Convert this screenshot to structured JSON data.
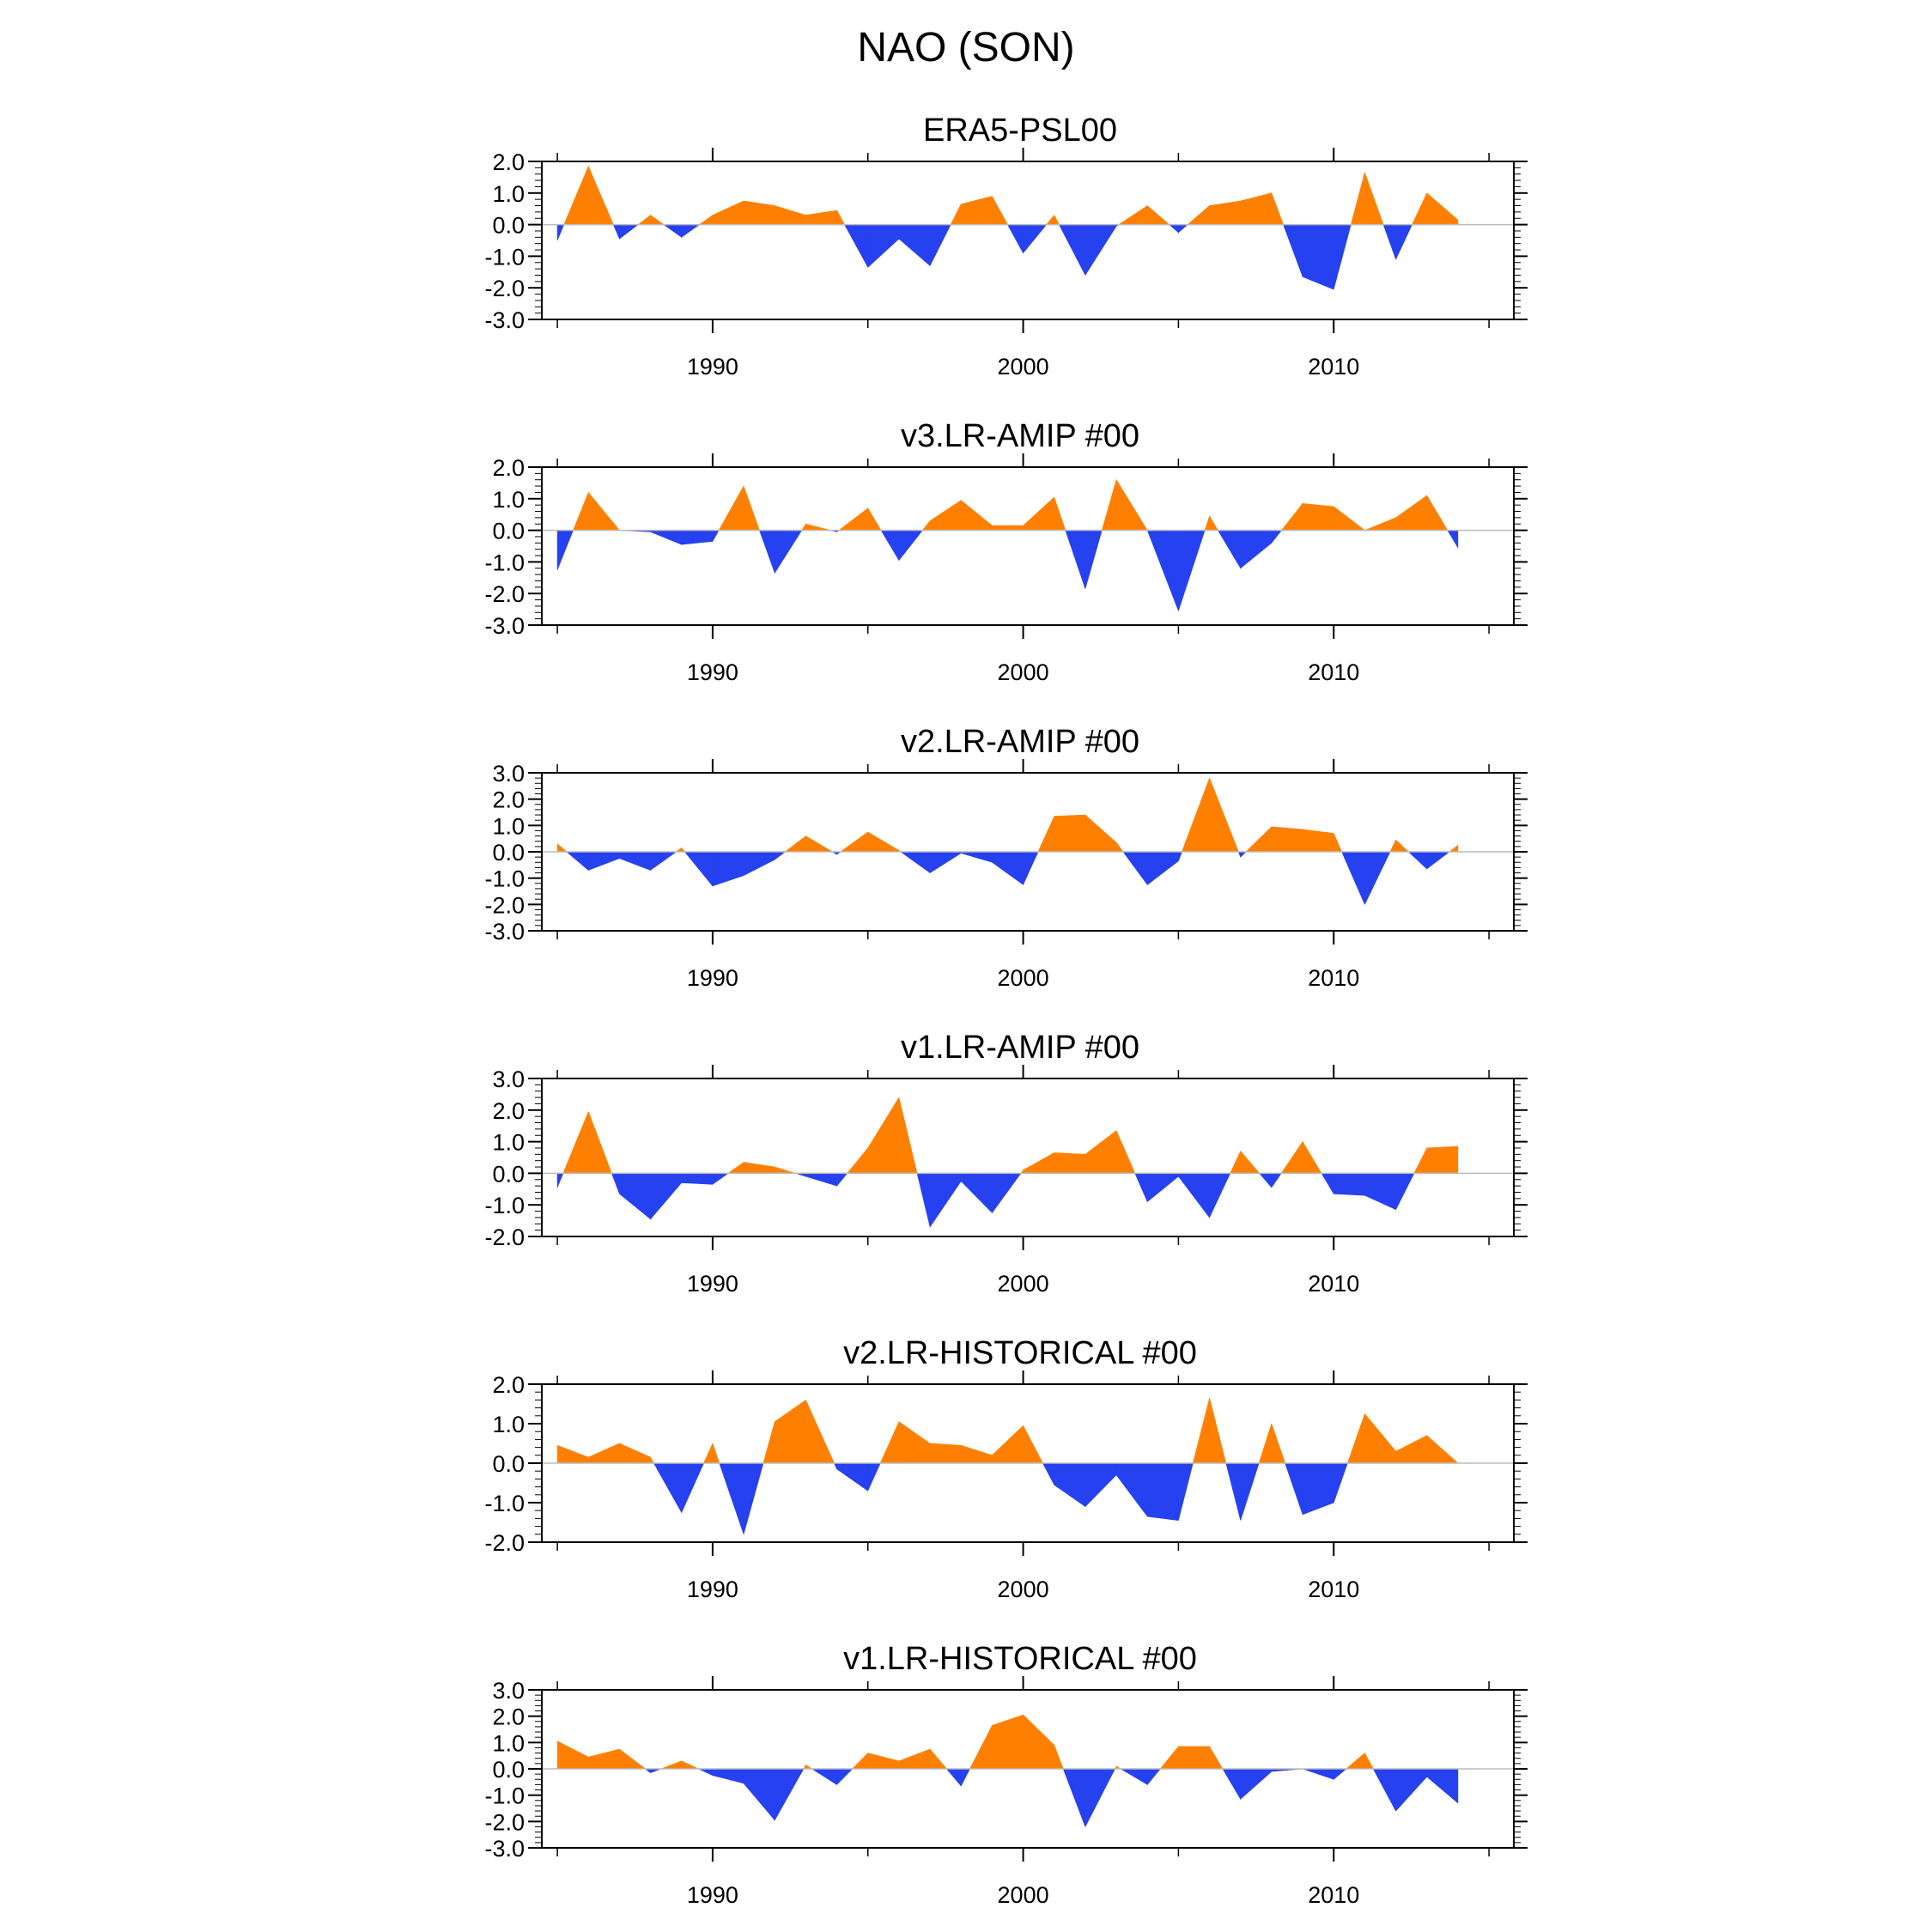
{
  "figure_title": "NAO (SON)",
  "colors": {
    "positive": "#ff8000",
    "negative": "#2641ef",
    "axis": "#000000",
    "zero_line": "#bbbbbb"
  },
  "chart_data": [
    {
      "type": "area",
      "title": "ERA5-PSL00",
      "xlabel": "",
      "ylabel": "",
      "xlim": [
        1984.5,
        2015.8
      ],
      "ylim": [
        -3.0,
        2.0
      ],
      "yticks": [
        2.0,
        1.0,
        0.0,
        -1.0,
        -2.0,
        -3.0
      ],
      "ytick_labels": [
        "2.0",
        "1.0",
        "0.0",
        "-1.0",
        "-2.0",
        "-3.0"
      ],
      "xticks": [
        1990,
        2000,
        2010
      ],
      "xtick_labels": [
        "1990",
        "2000",
        "2010"
      ],
      "x": [
        1985,
        1986,
        1987,
        1988,
        1989,
        1990,
        1991,
        1992,
        1993,
        1994,
        1995,
        1996,
        1997,
        1998,
        1999,
        2000,
        2001,
        2002,
        2003,
        2004,
        2005,
        2006,
        2007,
        2008,
        2009,
        2010,
        2011,
        2012,
        2013,
        2014
      ],
      "values": [
        -0.5,
        1.85,
        -0.45,
        0.3,
        -0.4,
        0.3,
        0.75,
        0.6,
        0.3,
        0.45,
        -1.35,
        -0.45,
        -1.3,
        0.65,
        0.9,
        -0.9,
        0.3,
        -1.6,
        -0.05,
        0.6,
        -0.25,
        0.6,
        0.75,
        1.0,
        -1.65,
        -2.05,
        1.65,
        -1.1,
        1.0,
        0.15
      ]
    },
    {
      "type": "area",
      "title": "v3.LR-AMIP  #00",
      "xlabel": "",
      "ylabel": "",
      "xlim": [
        1984.5,
        2015.8
      ],
      "ylim": [
        -3.0,
        2.0
      ],
      "yticks": [
        2.0,
        1.0,
        0.0,
        -1.0,
        -2.0,
        -3.0
      ],
      "ytick_labels": [
        "2.0",
        "1.0",
        "0.0",
        "-1.0",
        "-2.0",
        "-3.0"
      ],
      "xticks": [
        1990,
        2000,
        2010
      ],
      "xtick_labels": [
        "1990",
        "2000",
        "2010"
      ],
      "x": [
        1985,
        1986,
        1987,
        1988,
        1989,
        1990,
        1991,
        1992,
        1993,
        1994,
        1995,
        1996,
        1997,
        1998,
        1999,
        2000,
        2001,
        2002,
        2003,
        2004,
        2005,
        2006,
        2007,
        2008,
        2009,
        2010,
        2011,
        2012,
        2013,
        2014
      ],
      "values": [
        -1.25,
        1.2,
        0.0,
        -0.05,
        -0.45,
        -0.35,
        1.4,
        -1.35,
        0.2,
        -0.05,
        0.7,
        -0.95,
        0.3,
        0.95,
        0.15,
        0.15,
        1.05,
        -1.85,
        1.6,
        0.0,
        -2.55,
        0.45,
        -1.2,
        -0.4,
        0.85,
        0.75,
        0.0,
        0.4,
        1.1,
        -0.55
      ]
    },
    {
      "type": "area",
      "title": "v2.LR-AMIP  #00",
      "xlabel": "",
      "ylabel": "",
      "xlim": [
        1984.5,
        2015.8
      ],
      "ylim": [
        -3.0,
        3.0
      ],
      "yticks": [
        3.0,
        2.0,
        1.0,
        0.0,
        -1.0,
        -2.0,
        -3.0
      ],
      "ytick_labels": [
        "3.0",
        "2.0",
        "1.0",
        "0.0",
        "-1.0",
        "-2.0",
        "-3.0"
      ],
      "xticks": [
        1990,
        2000,
        2010
      ],
      "xtick_labels": [
        "1990",
        "2000",
        "2010"
      ],
      "x": [
        1985,
        1986,
        1987,
        1988,
        1989,
        1990,
        1991,
        1992,
        1993,
        1994,
        1995,
        1996,
        1997,
        1998,
        1999,
        2000,
        2001,
        2002,
        2003,
        2004,
        2005,
        2006,
        2007,
        2008,
        2009,
        2010,
        2011,
        2012,
        2013,
        2014
      ],
      "values": [
        0.3,
        -0.7,
        -0.25,
        -0.7,
        0.15,
        -1.3,
        -0.9,
        -0.3,
        0.6,
        -0.1,
        0.75,
        0.05,
        -0.8,
        -0.05,
        -0.4,
        -1.25,
        1.35,
        1.4,
        0.35,
        -1.25,
        -0.35,
        2.8,
        -0.2,
        0.95,
        0.85,
        0.7,
        -2.0,
        0.45,
        -0.65,
        0.25
      ]
    },
    {
      "type": "area",
      "title": "v1.LR-AMIP  #00",
      "xlabel": "",
      "ylabel": "",
      "xlim": [
        1984.5,
        2015.8
      ],
      "ylim": [
        -2.0,
        3.0
      ],
      "yticks": [
        3.0,
        2.0,
        1.0,
        0.0,
        -1.0,
        -2.0
      ],
      "ytick_labels": [
        "3.0",
        "2.0",
        "1.0",
        "0.0",
        "-1.0",
        "-2.0"
      ],
      "xticks": [
        1990,
        2000,
        2010
      ],
      "xtick_labels": [
        "1990",
        "2000",
        "2010"
      ],
      "x": [
        1985,
        1986,
        1987,
        1988,
        1989,
        1990,
        1991,
        1992,
        1993,
        1994,
        1995,
        1996,
        1997,
        1998,
        1999,
        2000,
        2001,
        2002,
        2003,
        2004,
        2005,
        2006,
        2007,
        2008,
        2009,
        2010,
        2011,
        2012,
        2013,
        2014
      ],
      "values": [
        -0.45,
        1.95,
        -0.65,
        -1.45,
        -0.3,
        -0.35,
        0.35,
        0.2,
        -0.1,
        -0.4,
        0.8,
        2.4,
        -1.7,
        -0.25,
        -1.25,
        0.1,
        0.65,
        0.6,
        1.35,
        -0.9,
        -0.1,
        -1.4,
        0.7,
        -0.45,
        1.0,
        -0.65,
        -0.7,
        -1.15,
        0.8,
        0.85
      ]
    },
    {
      "type": "area",
      "title": "v2.LR-HISTORICAL  #00",
      "xlabel": "",
      "ylabel": "",
      "xlim": [
        1984.5,
        2015.8
      ],
      "ylim": [
        -2.0,
        2.0
      ],
      "yticks": [
        2.0,
        1.0,
        0.0,
        -1.0,
        -2.0
      ],
      "ytick_labels": [
        "2.0",
        "1.0",
        "0.0",
        "-1.0",
        "-2.0"
      ],
      "xticks": [
        1990,
        2000,
        2010
      ],
      "xtick_labels": [
        "1990",
        "2000",
        "2010"
      ],
      "x": [
        1985,
        1986,
        1987,
        1988,
        1989,
        1990,
        1991,
        1992,
        1993,
        1994,
        1995,
        1996,
        1997,
        1998,
        1999,
        2000,
        2001,
        2002,
        2003,
        2004,
        2005,
        2006,
        2007,
        2008,
        2009,
        2010,
        2011,
        2012,
        2013,
        2014
      ],
      "values": [
        0.45,
        0.15,
        0.5,
        0.15,
        -1.25,
        0.5,
        -1.8,
        1.05,
        1.6,
        -0.15,
        -0.7,
        1.05,
        0.5,
        0.45,
        0.2,
        0.95,
        -0.55,
        -1.1,
        -0.3,
        -1.35,
        -1.45,
        1.65,
        -1.45,
        1.0,
        -1.3,
        -1.0,
        1.25,
        0.3,
        0.7,
        0.0
      ]
    },
    {
      "type": "area",
      "title": "v1.LR-HISTORICAL  #00",
      "xlabel": "",
      "ylabel": "",
      "xlim": [
        1984.5,
        2015.8
      ],
      "ylim": [
        -3.0,
        3.0
      ],
      "yticks": [
        3.0,
        2.0,
        1.0,
        0.0,
        -1.0,
        -2.0,
        -3.0
      ],
      "ytick_labels": [
        "3.0",
        "2.0",
        "1.0",
        "0.0",
        "-1.0",
        "-2.0",
        "-3.0"
      ],
      "xticks": [
        1990,
        2000,
        2010
      ],
      "xtick_labels": [
        "1990",
        "2000",
        "2010"
      ],
      "x": [
        1985,
        1986,
        1987,
        1988,
        1989,
        1990,
        1991,
        1992,
        1993,
        1994,
        1995,
        1996,
        1997,
        1998,
        1999,
        2000,
        2001,
        2002,
        2003,
        2004,
        2005,
        2006,
        2007,
        2008,
        2009,
        2010,
        2011,
        2012,
        2013,
        2014
      ],
      "values": [
        1.05,
        0.45,
        0.75,
        -0.15,
        0.3,
        -0.25,
        -0.55,
        -1.95,
        0.15,
        -0.6,
        0.6,
        0.3,
        0.75,
        -0.65,
        1.65,
        2.05,
        0.9,
        -2.2,
        0.1,
        -0.6,
        0.85,
        0.85,
        -1.15,
        -0.1,
        0.0,
        -0.4,
        0.6,
        -1.6,
        -0.3,
        -1.3
      ]
    }
  ]
}
